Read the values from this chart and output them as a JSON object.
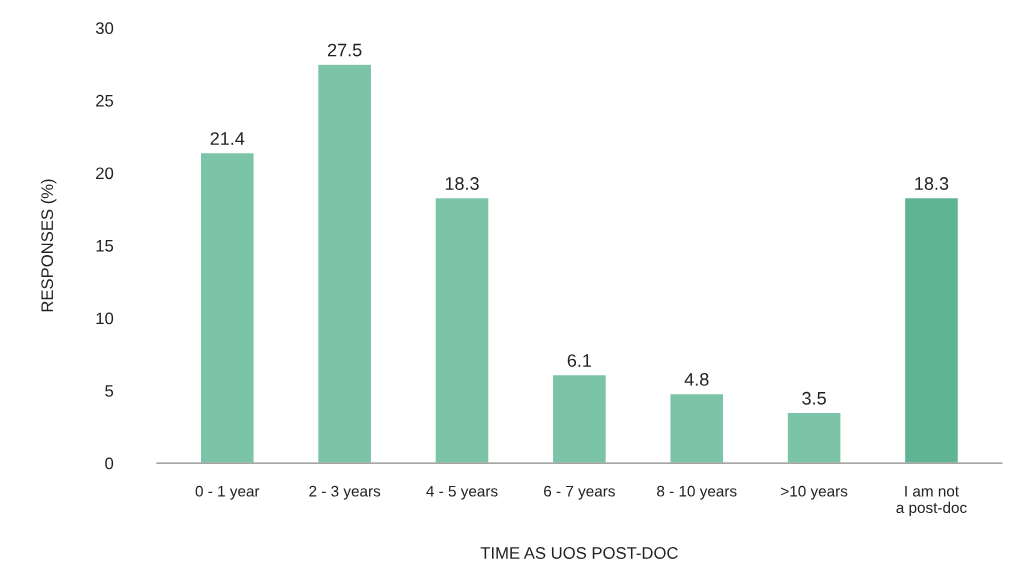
{
  "chart_data": {
    "type": "bar",
    "xlabel": "TIME AS UOS POST-DOC",
    "ylabel": "RESPONSES (%)",
    "categories": [
      "0 - 1 year",
      "2 - 3 years",
      "4 - 5 years",
      "6 - 7 years",
      "8 - 10 years",
      ">10 years",
      "I am not\na post-doc"
    ],
    "values": [
      21.4,
      27.5,
      18.3,
      6.1,
      4.8,
      3.5,
      18.3
    ],
    "colors": [
      "#7cc4a7",
      "#7cc4a7",
      "#7cc4a7",
      "#7cc4a7",
      "#7cc4a7",
      "#7cc4a7",
      "#5fb493"
    ],
    "ylim": [
      0,
      30
    ],
    "yticks": [
      0,
      5,
      10,
      15,
      20,
      25,
      30
    ],
    "grid": false,
    "data_labels": true
  }
}
